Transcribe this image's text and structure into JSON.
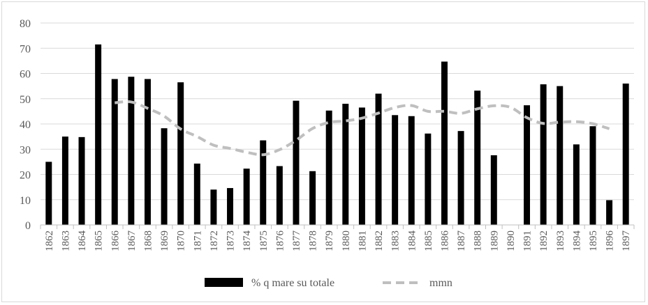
{
  "chart_data": {
    "type": "bar",
    "categories": [
      "1862",
      "1863",
      "1864",
      "1865",
      "1866",
      "1867",
      "1868",
      "1869",
      "1870",
      "1871",
      "1872",
      "1873",
      "1874",
      "1875",
      "1876",
      "1877",
      "1878",
      "1879",
      "1880",
      "1881",
      "1882",
      "1883",
      "1884",
      "1885",
      "1886",
      "1887",
      "1888",
      "1889",
      "1890",
      "1891",
      "1892",
      "1893",
      "1894",
      "1895",
      "1896",
      "1897"
    ],
    "series": [
      {
        "name": "% q mare su totale",
        "type": "bar",
        "color": "#000000",
        "values": [
          25,
          35,
          34.8,
          71.5,
          57.8,
          58.7,
          57.8,
          38.3,
          56.5,
          24.3,
          14,
          14.6,
          22.3,
          33.5,
          23.3,
          49.2,
          21.3,
          45.3,
          48,
          46.5,
          52,
          43.5,
          43.1,
          36.2,
          64.7,
          37.2,
          53.2,
          27.6,
          null,
          47.4,
          55.7,
          55,
          31.9,
          39.1,
          9.8,
          56
        ]
      },
      {
        "name": "mmn",
        "type": "line",
        "style": "dashed",
        "color": "#bfbfbf",
        "values": [
          null,
          null,
          null,
          null,
          48.4,
          48.7,
          46.2,
          43.1,
          38,
          35,
          31.6,
          30.3,
          28.8,
          27.8,
          29.8,
          33.5,
          38.2,
          40.6,
          41.2,
          42.3,
          44.3,
          46.5,
          47.3,
          45,
          45,
          44.2,
          46,
          47.2,
          46.6,
          42.5,
          40.2,
          40.7,
          40.9,
          40.1,
          38.1,
          null
        ]
      }
    ],
    "ylim": [
      0,
      80
    ],
    "yticks": [
      "0",
      "10",
      "20",
      "30",
      "40",
      "50",
      "60",
      "70",
      "80"
    ],
    "grid": true,
    "legend": "bottom"
  }
}
